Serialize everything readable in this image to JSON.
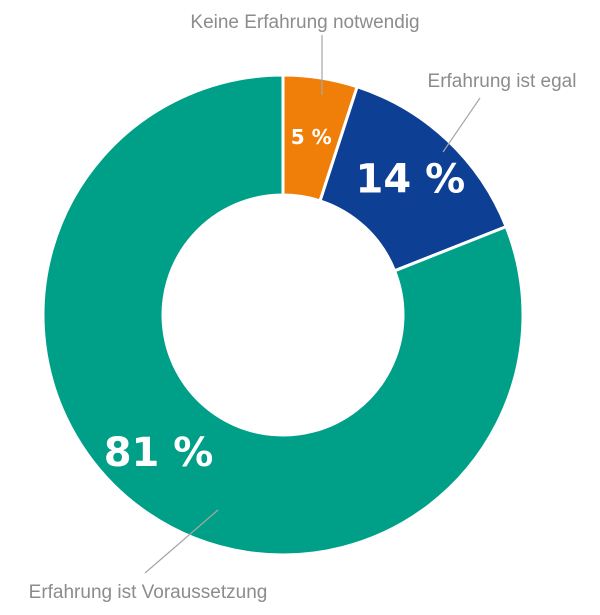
{
  "chart_data": {
    "type": "pie",
    "variant": "donut",
    "categories": [
      "Keine Erfahrung notwendig",
      "Erfahrung ist egal",
      "Erfahrung ist Voraussetzung"
    ],
    "values": [
      5,
      14,
      81
    ],
    "value_labels": [
      "5 %",
      "14 %",
      "81 %"
    ],
    "colors": [
      "#f07f0a",
      "#0d3f94",
      "#00a088"
    ],
    "legend": "none",
    "title": ""
  }
}
